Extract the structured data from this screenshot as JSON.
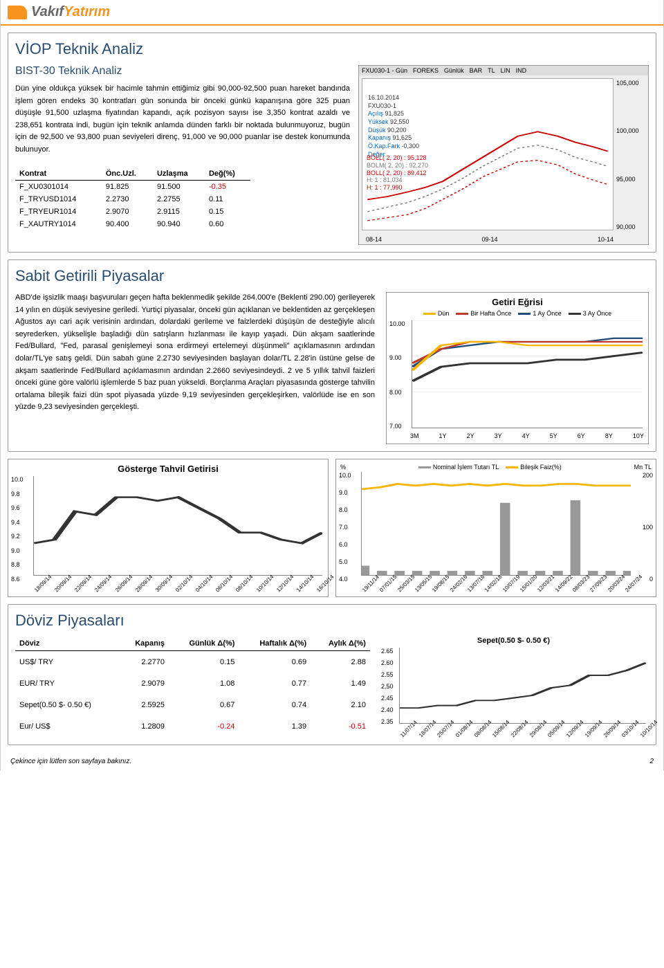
{
  "brand": {
    "vakif": "Vakıf",
    "yatirim": "Yatırım"
  },
  "viop": {
    "title": "VİOP Teknik Analiz",
    "subtitle": "BIST-30 Teknik Analiz",
    "text": "Dün yine oldukça yüksek bir hacimle tahmin ettiğimiz gibi 90,000-92,500 puan hareket bandında işlem gören endeks 30 kontratları gün sonunda bir önceki günkü kapanışına göre 325 puan düşüşle 91,500 uzlaşma fiyatından kapandı, açık pozisyon sayısı ise 3,350 kontrat azaldı ve 238,651 kontrata indi, bugün için teknik anlamda dünden farklı bir noktada bulunmuyoruz, bugün için de 92,500 ve 93,800 puan seviyeleri direnç, 91,000 ve 90,000 puanlar ise destek konumunda bulunuyor.",
    "table_headers": [
      "Kontrat",
      "Önc.Uzl.",
      "Uzlaşma",
      "Değ(%)"
    ],
    "rows": [
      {
        "k": "F_XU0301014",
        "a": "91.825",
        "b": "91.500",
        "c": "-0.35",
        "neg": true
      },
      {
        "k": "F_TRYUSD1014",
        "a": "2.2730",
        "b": "2.2755",
        "c": "0.11",
        "neg": false
      },
      {
        "k": "F_TRYEUR1014",
        "a": "2.9070",
        "b": "2.9115",
        "c": "0.15",
        "neg": false
      },
      {
        "k": "F_XAUTRY1014",
        "a": "90.400",
        "b": "90.940",
        "c": "0.60",
        "neg": false
      }
    ],
    "fxchart": {
      "bar_labels": [
        "FXU030-1 - Gün",
        "FOREKS",
        "Günlük",
        "BAR",
        "TL",
        "LIN",
        "IND"
      ],
      "date": "16.10.2014",
      "code": "FXU030-1",
      "lines": [
        [
          "Açılış",
          "91,825"
        ],
        [
          "Yüksek",
          "92,550"
        ],
        [
          "Düşük",
          "90,200"
        ],
        [
          "Kapanış",
          "91,625"
        ],
        [
          "Ö.Kap.Fark",
          "-0,300"
        ],
        [
          "Değer",
          ""
        ]
      ],
      "bolm_lines": [
        "BOLL( 2, 20) : 95,128",
        "BOLM( 2, 20) : 92,270",
        "BOLL( 2, 20) : 89,412",
        "H: 1 : 81,034",
        "H: 1 : 77,990"
      ],
      "ylabels": [
        "105,000",
        "100,000",
        "95,000",
        "90,000"
      ],
      "xlabels": [
        "08-14",
        "09-14",
        "10-14"
      ]
    }
  },
  "sabit": {
    "title": "Sabit Getirili Piyasalar",
    "text": "ABD'de işsizlik maaşı başvuruları geçen hafta beklenmedik şekilde 264.000'e (Beklenti 290.00) gerileyerek 14 yılın en düşük seviyesine geriledi. Yurtiçi piyasalar, önceki gün açıklanan ve beklentiden az gerçekleşen Ağustos ayı cari açık verisinin ardından, dolardaki gerileme ve faizlerdeki düşüşün de desteğiyle alıcılı seyrederken, yükselişle başladığı dün satışların hızlanması ile kayıp yaşadı. Dün akşam saatlerinde Fed/Bullard, \"Fed, parasal genişlemeyi sona erdirmeyi ertelemeyi düşünmeli\" açıklamasının ardından dolar/TL'ye satış geldi. Dün sabah güne 2.2730 seviyesinden başlayan dolar/TL 2.28'in üstüne gelse de akşam saatlerinde Fed/Bullard açıklamasının ardından 2.2660 seviyesindeydi. 2 ve 5 yıllık tahvil faizleri önceki güne göre valörlü işlemlerde 5 baz puan yükseldi. Borçlanma Araçları piyasasında gösterge tahvilin ortalama bileşik faizi dün spot piyasada yüzde 9,19 seviyesinden gerçekleşirken, valörlüde ise en son yüzde 9,23 seviyesinden gerçekleşti.",
    "getiri_chart": {
      "title": "Getiri Eğrisi",
      "legend": [
        {
          "label": "Dün",
          "color": "#f7b500"
        },
        {
          "label": "Bir Hafta Önce",
          "color": "#c0392b"
        },
        {
          "label": "1 Ay Önce",
          "color": "#1e4e79"
        },
        {
          "label": "3 Ay Önce",
          "color": "#333333"
        }
      ],
      "ylabels": [
        "10.00",
        "9.00",
        "8.00",
        "7.00"
      ],
      "xlabels": [
        "3M",
        "1Y",
        "2Y",
        "3Y",
        "4Y",
        "5Y",
        "6Y",
        "8Y",
        "10Y"
      ],
      "series": {
        "dun": [
          8.6,
          9.3,
          9.4,
          9.4,
          9.3,
          9.3,
          9.3,
          9.3,
          9.3
        ],
        "hafta": [
          8.8,
          9.2,
          9.4,
          9.4,
          9.4,
          9.4,
          9.4,
          9.4,
          9.4
        ],
        "ay": [
          8.7,
          9.2,
          9.3,
          9.4,
          9.4,
          9.4,
          9.4,
          9.5,
          9.5
        ],
        "ay3": [
          8.3,
          8.7,
          8.8,
          8.8,
          8.8,
          8.9,
          8.9,
          9.0,
          9.1
        ]
      }
    },
    "gosterge_chart": {
      "title": "Gösterge Tahvil Getirisi",
      "ylabels": [
        "10.0",
        "9.8",
        "9.6",
        "9.4",
        "9.2",
        "9.0",
        "8.8",
        "8.6"
      ],
      "xlabels": [
        "18/09/14",
        "20/09/14",
        "22/09/14",
        "24/09/14",
        "26/09/14",
        "28/09/14",
        "30/09/14",
        "02/10/14",
        "04/10/14",
        "06/10/14",
        "08/10/14",
        "10/10/14",
        "12/10/14",
        "14/10/14",
        "16/10/14"
      ],
      "color": "#333333",
      "values": [
        9.05,
        9.1,
        9.5,
        9.45,
        9.7,
        9.7,
        9.65,
        9.7,
        9.55,
        9.4,
        9.2,
        9.2,
        9.1,
        9.05,
        9.2
      ]
    },
    "nominal_chart": {
      "title_left": "%",
      "title_right": "Mn TL",
      "legend": [
        {
          "label": "Nominal İşlem Tutarı TL",
          "color": "#999999"
        },
        {
          "label": "Bileşik Faiz(%)",
          "color": "#f7b500"
        }
      ],
      "ylabels_left": [
        "10.0",
        "9.0",
        "8.0",
        "7.0",
        "6.0",
        "5.0",
        "4.0"
      ],
      "ylabels_right": [
        "200",
        "100",
        "0"
      ],
      "xlabels": [
        "19/11/14",
        "07/01/15",
        "25/03/15",
        "13/05/15",
        "19/08/15",
        "24/02/16",
        "13/07/16",
        "14/02/18",
        "10/07/19",
        "15/01/20",
        "12/03/21",
        "14/09/22",
        "08/03/23",
        "27/09/23",
        "20/03/24",
        "24/07/24"
      ],
      "faiz_values": [
        9.0,
        9.1,
        9.3,
        9.2,
        9.3,
        9.2,
        9.3,
        9.2,
        9.3,
        9.2,
        9.2,
        9.3,
        9.3,
        9.2,
        9.2,
        9.2
      ],
      "bar_values": [
        18,
        8,
        8,
        8,
        8,
        8,
        8,
        8,
        140,
        8,
        8,
        8,
        145,
        8,
        8,
        8
      ]
    }
  },
  "doviz": {
    "title": "Döviz Piyasaları",
    "headers": [
      "Döviz",
      "Kapanış",
      "Günlük Δ(%)",
      "Haftalık Δ(%)",
      "Aylık Δ(%)"
    ],
    "rows": [
      {
        "d": "US$/ TRY",
        "k": "2.2770",
        "g": "0.15",
        "h": "0.69",
        "a": "2.88"
      },
      {
        "d": "EUR/ TRY",
        "k": "2.9079",
        "g": "1.08",
        "h": "0.77",
        "a": "1.49"
      },
      {
        "d": "Sepet(0.50 $- 0.50 €)",
        "k": "2.5925",
        "g": "0.67",
        "h": "0.74",
        "a": "2.10"
      },
      {
        "d": "Eur/ US$",
        "k": "1.2809",
        "g": "-0.24",
        "gn": true,
        "h": "1.39",
        "a": "-0.51",
        "an": true
      }
    ],
    "sepet_chart": {
      "title": "Sepet(0.50 $- 0.50 €)",
      "color": "#333333",
      "ylabels": [
        "2.65",
        "2.60",
        "2.55",
        "2.50",
        "2.45",
        "2.40",
        "2.35"
      ],
      "xlabels": [
        "11/07/14",
        "18/07/14",
        "25/07/14",
        "01/08/14",
        "08/08/14",
        "15/08/14",
        "22/08/14",
        "29/08/14",
        "05/09/14",
        "12/09/14",
        "19/09/14",
        "26/09/14",
        "03/10/14",
        "10/10/14"
      ],
      "values": [
        2.41,
        2.41,
        2.42,
        2.42,
        2.44,
        2.44,
        2.45,
        2.46,
        2.49,
        2.5,
        2.54,
        2.54,
        2.56,
        2.59
      ]
    }
  },
  "footer": {
    "note": "Çekince için lütfen son sayfaya bakınız.",
    "page": "2"
  }
}
